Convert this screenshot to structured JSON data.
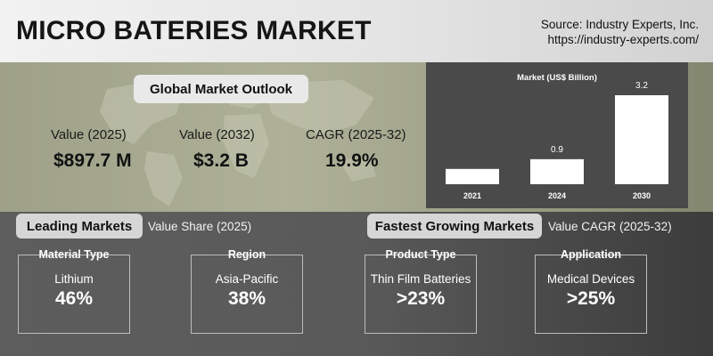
{
  "header": {
    "title": "MICRO BATERIES MARKET",
    "source_line1": "Source: Industry Experts, Inc.",
    "source_line2": "https://industry-experts.com/"
  },
  "outlook": {
    "heading": "Global Market Outlook",
    "stats": [
      {
        "label": "Value (2025)",
        "value": "$897.7 M"
      },
      {
        "label": "Value (2032)",
        "value": "$3.2 B"
      },
      {
        "label": "CAGR (2025-32)",
        "value": "19.9%"
      }
    ]
  },
  "chart_data": {
    "type": "bar",
    "title": "Market (US$ Billion)",
    "categories": [
      "2021",
      "2024",
      "2030"
    ],
    "values": [
      null,
      0.9,
      3.2
    ],
    "estimated_values": [
      0.55,
      0.9,
      3.2
    ],
    "data_labels": [
      "",
      "0.9",
      "3.2"
    ],
    "ylim": [
      0,
      3.2
    ],
    "grid": false,
    "bar_color": "#ffffff",
    "background_color": "#4a4a4a"
  },
  "leading": {
    "heading": "Leading Markets",
    "subheading": "Value Share (2025)",
    "cards": [
      {
        "category": "Material Type",
        "name": "Lithium",
        "value": "46%"
      },
      {
        "category": "Region",
        "name": "Asia-Pacific",
        "value": "38%"
      }
    ]
  },
  "fastest": {
    "heading": "Fastest Growing Markets",
    "subheading": "Value CAGR (2025-32)",
    "cards": [
      {
        "category": "Product Type",
        "name": "Thin Film Batteries",
        "value": ">23%"
      },
      {
        "category": "Application",
        "name": "Medical Devices",
        "value": ">25%"
      }
    ]
  },
  "icons": {
    "map": "world-map-icon"
  }
}
